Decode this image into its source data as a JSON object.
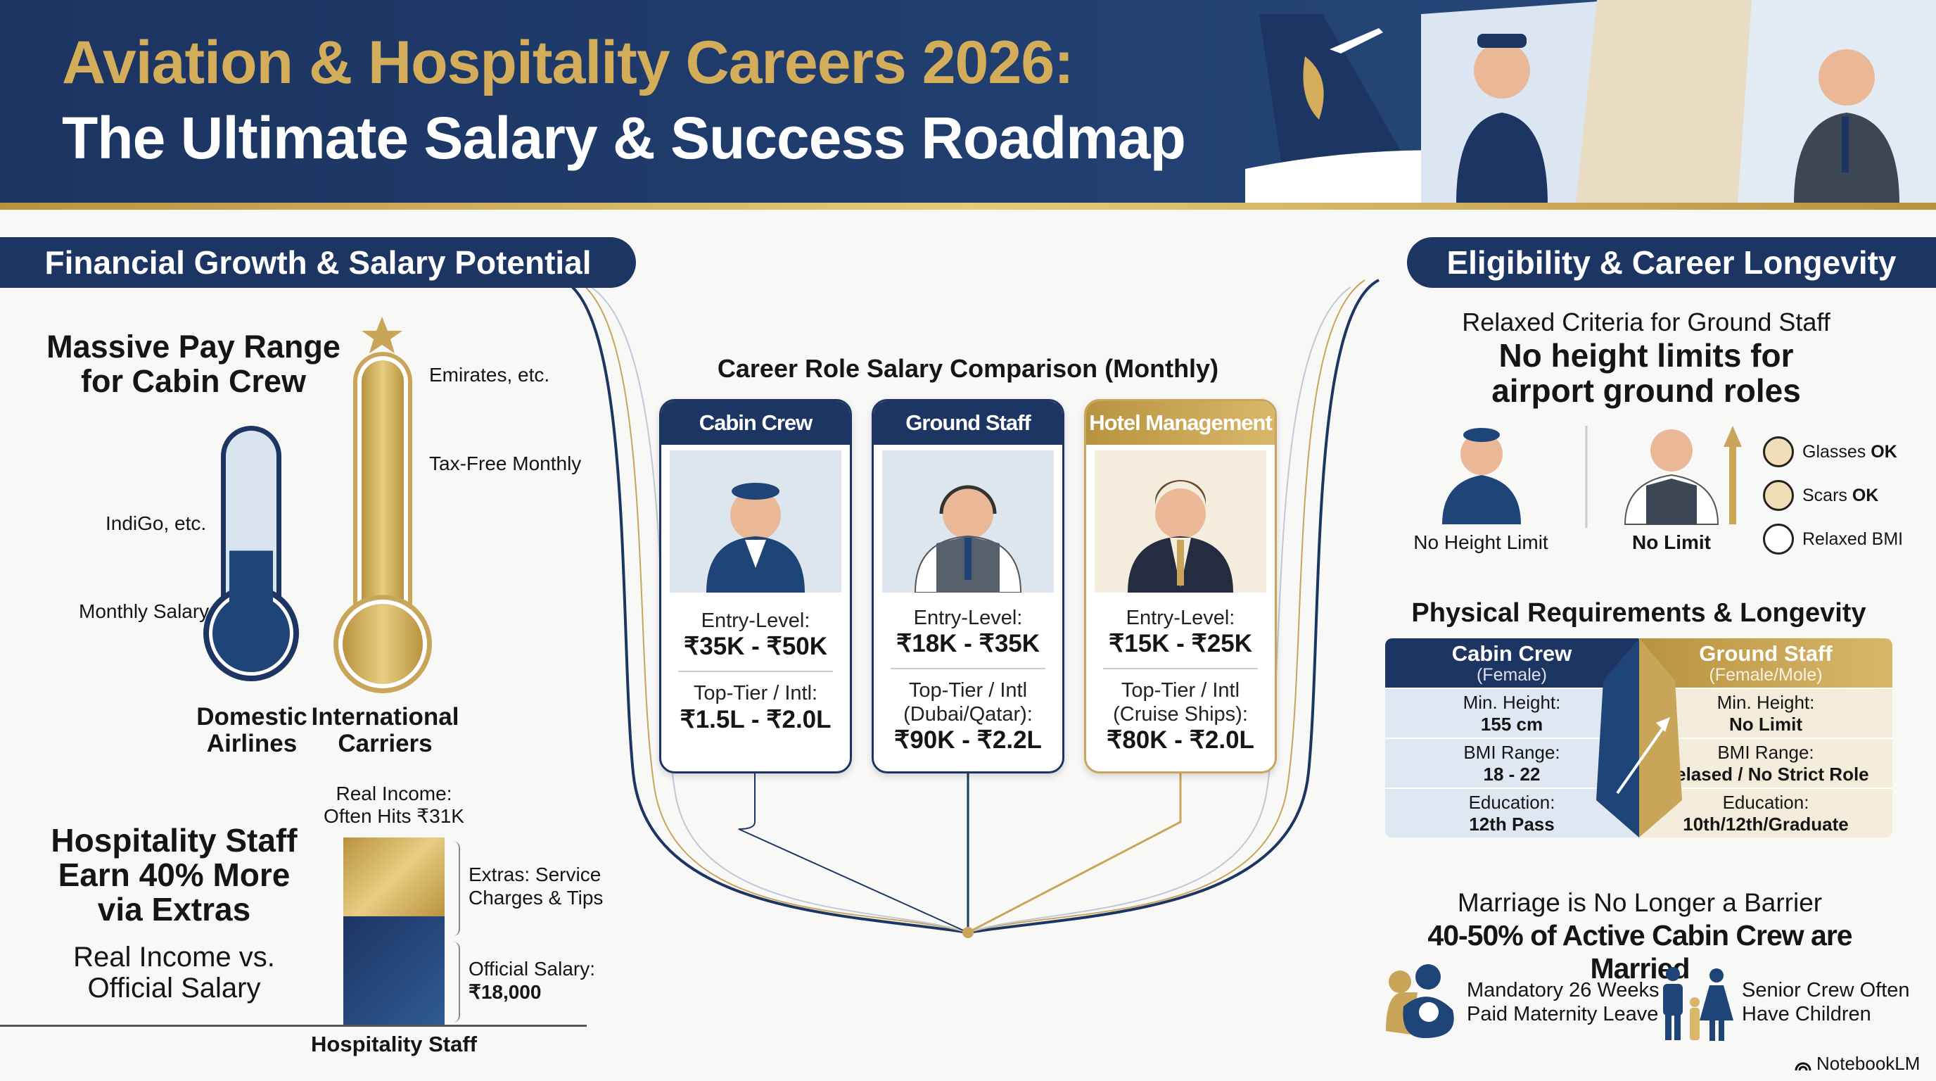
{
  "header": {
    "title_line1": "Aviation & Hospitality Careers 2026:",
    "title_line2": "The Ultimate Salary & Success Roadmap"
  },
  "colors": {
    "navy": "#1d3563",
    "gold": "#c9a55a",
    "light_blue": "#dde5ef"
  },
  "left": {
    "section_title": "Financial Growth & Salary Potential",
    "pay_range_title": [
      "Massive Pay Range",
      "for Cabin Crew"
    ],
    "domestic": {
      "label": [
        "Domestic",
        "Airlines"
      ],
      "examples": "IndiGo, etc.",
      "note": "Monthly Salary",
      "fill_fraction": 0.45
    },
    "international": {
      "label": [
        "International",
        "Carriers"
      ],
      "examples": "Emirates, etc.",
      "note": "Tax-Free Monthly",
      "fill_fraction": 1.0,
      "icon": "star-icon"
    },
    "hospitality_title": [
      "Hospitality Staff",
      "Earn 40% More",
      "via Extras"
    ],
    "hospitality_subtitle": [
      "Real Income vs.",
      "Official Salary"
    ],
    "bar": {
      "top_label": [
        "Real Income:",
        "Often Hits ₹31K"
      ],
      "extras_label": [
        "Extras: Service",
        "Charges & Tips"
      ],
      "official_label": [
        "Official Salary:",
        "₹18,000"
      ],
      "axis_label": "Hospitality Staff",
      "official_value": 18000,
      "real_value": 31000
    }
  },
  "center": {
    "title": "Career Role Salary Comparison (Monthly)",
    "cards": [
      {
        "title": "Cabin Crew",
        "entry_label": "Entry-Level:",
        "entry_value": "₹35K - ₹50K",
        "top_label": [
          "Top-Tier / Intl:"
        ],
        "top_value": "₹1.5L - ₹2.0L",
        "icon": "flight-attendant-icon"
      },
      {
        "title": "Ground Staff",
        "entry_label": "Entry-Level:",
        "entry_value": "₹18K - ₹35K",
        "top_label": [
          "Top-Tier / Intl",
          "(Dubai/Qatar):"
        ],
        "top_value": "₹90K - ₹2.2L",
        "icon": "ground-staff-headset-icon"
      },
      {
        "title": "Hotel Management",
        "entry_label": "Entry-Level:",
        "entry_value": "₹15K - ₹25K",
        "top_label": [
          "Top-Tier / Intl",
          "(Cruise Ships):"
        ],
        "top_value": "₹80K - ₹2.0L",
        "icon": "hotel-manager-icon"
      }
    ]
  },
  "right": {
    "section_title": "Eligibility & Career Longevity",
    "relaxed_subtitle": "Relaxed Criteria for Ground Staff",
    "relaxed_title": [
      "No height limits for",
      "airport ground roles"
    ],
    "female_label": "No Height Limit",
    "male_label": "No Limit",
    "checks": [
      {
        "icon": "glasses-icon",
        "text": "Glasses ",
        "bold": "OK"
      },
      {
        "icon": "scar-icon",
        "text": "Scars ",
        "bold": "OK"
      },
      {
        "icon": "scale-icon",
        "text": "Relaxed BMI",
        "bold": ""
      }
    ],
    "physical_title": "Physical Requirements & Longevity",
    "table": {
      "left": {
        "title": "Cabin Crew",
        "sub": "(Female)",
        "rows": [
          [
            "Min. Height:",
            "155 cm"
          ],
          [
            "BMI Range:",
            "18 - 22"
          ],
          [
            "Education:",
            "12th Pass"
          ]
        ]
      },
      "right": {
        "title": "Ground Staff",
        "sub": "(Female/Mole)",
        "rows": [
          [
            "Min. Height:",
            "No Limit"
          ],
          [
            "BMI Range:",
            "Relased / No Strict Role"
          ],
          [
            "Education:",
            "10th/12th/Graduate"
          ]
        ]
      }
    },
    "marriage_subtitle": "Marriage is No Longer a Barrier",
    "marriage_title": "40-50% of Active Cabin Crew are Married",
    "maternity": [
      "Mandatory 26 Weeks",
      "Paid Maternity Leave"
    ],
    "children": [
      "Senior Crew Often",
      "Have Children"
    ]
  },
  "branding": "NotebookLM"
}
